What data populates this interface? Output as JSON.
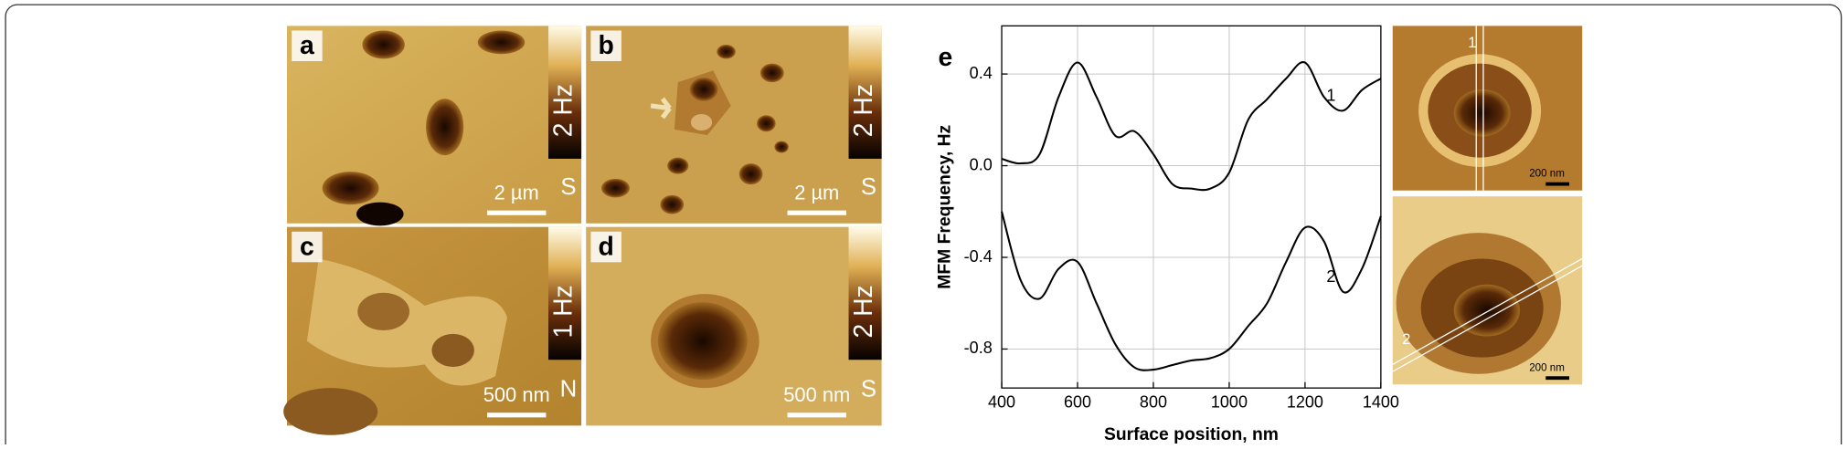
{
  "panels": [
    {
      "label": "a",
      "colorbar": "2 Hz",
      "pole": "S",
      "scale": "2 µm"
    },
    {
      "label": "b",
      "colorbar": "2 Hz",
      "pole": "S",
      "scale": "2 µm"
    },
    {
      "label": "c",
      "colorbar": "1 Hz",
      "pole": "N",
      "scale": "500 nm"
    },
    {
      "label": "d",
      "colorbar": "2 Hz",
      "pole": "S",
      "scale": "500 nm"
    }
  ],
  "profile_images": [
    {
      "scale": "200 nm"
    },
    {
      "scale": "200 nm"
    }
  ],
  "chart_data": {
    "type": "line",
    "label": "e",
    "x_label": "Surface position, nm",
    "y_label": "MFM Frequency, Hz",
    "x": [
      400,
      450,
      500,
      550,
      600,
      650,
      700,
      750,
      800,
      850,
      900,
      950,
      1000,
      1050,
      1100,
      1150,
      1200,
      1250,
      1300,
      1350,
      1400
    ],
    "series": [
      {
        "name": "1",
        "color": "#000000",
        "values": [
          0.03,
          0.01,
          0.05,
          0.3,
          0.45,
          0.3,
          0.13,
          0.15,
          0.05,
          -0.08,
          -0.1,
          -0.1,
          -0.03,
          0.2,
          0.29,
          0.38,
          0.45,
          0.3,
          0.24,
          0.33,
          0.38
        ]
      },
      {
        "name": "2",
        "color": "#000000",
        "values": [
          -0.2,
          -0.5,
          -0.58,
          -0.45,
          -0.42,
          -0.6,
          -0.78,
          -0.88,
          -0.89,
          -0.87,
          -0.85,
          -0.84,
          -0.8,
          -0.7,
          -0.6,
          -0.42,
          -0.27,
          -0.33,
          -0.55,
          -0.45,
          -0.22
        ]
      }
    ],
    "xlim": [
      400,
      1400
    ],
    "xticks": [
      400,
      600,
      800,
      1000,
      1200,
      1400
    ],
    "ylim": [
      -0.97,
      0.61
    ],
    "yticks": [
      -0.8,
      -0.4,
      {
        "value": 0,
        "label": "0.0"
      },
      0.4
    ],
    "grid": true
  }
}
